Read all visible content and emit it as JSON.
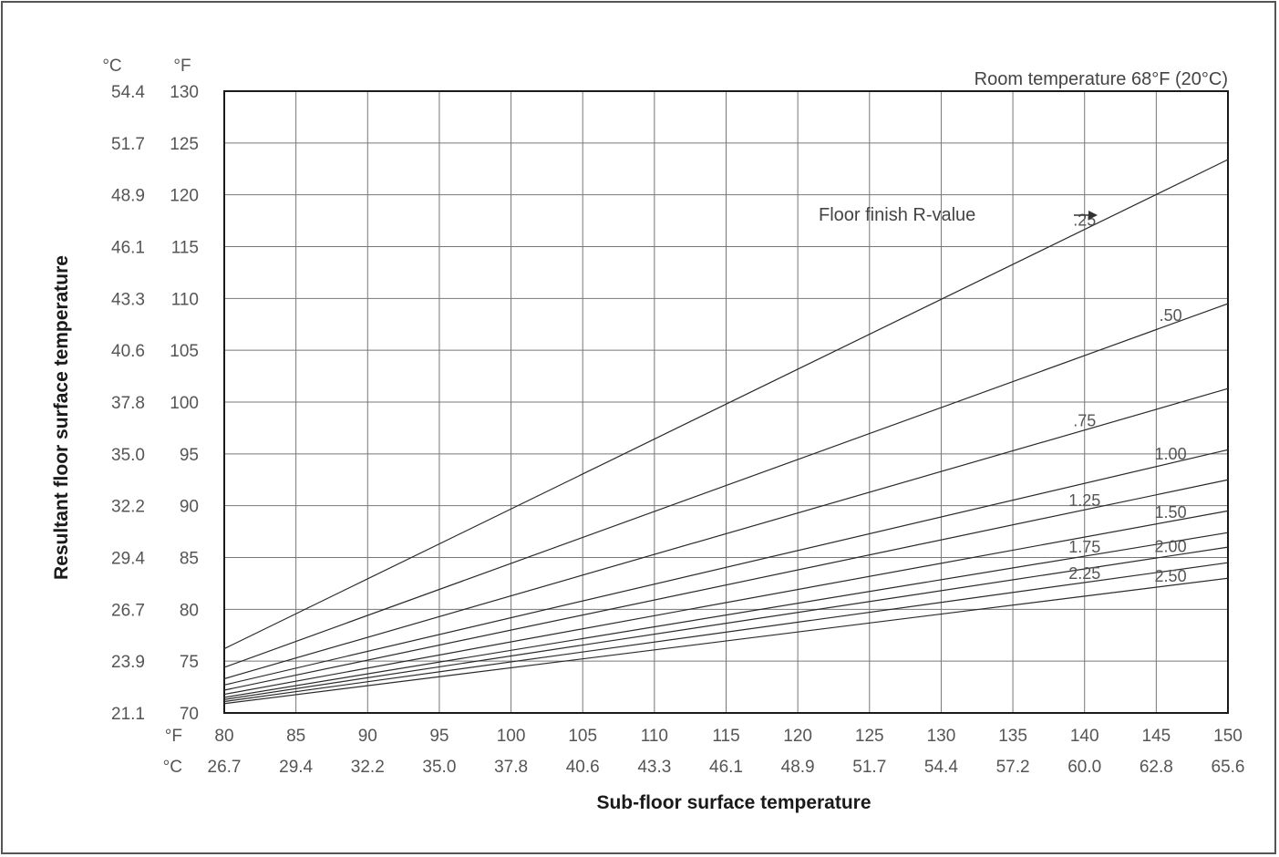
{
  "chart_data": {
    "type": "line",
    "title": "",
    "annotation": "Room temperature 68°F (20°C)",
    "legend_title": "Floor finish R-value",
    "xlabel": "Sub-floor surface temperature",
    "ylabel": "Resultant floor surface temperature",
    "x_unit_f": "°F",
    "x_unit_c": "°C",
    "y_unit_c": "°C",
    "y_unit_f": "°F",
    "xlim": [
      80,
      150
    ],
    "ylim": [
      70,
      130
    ],
    "x_ticks_f": [
      "80",
      "85",
      "90",
      "95",
      "100",
      "105",
      "110",
      "115",
      "120",
      "125",
      "130",
      "135",
      "140",
      "145",
      "150"
    ],
    "x_ticks_c": [
      "26.7",
      "29.4",
      "32.2",
      "35.0",
      "37.8",
      "40.6",
      "43.3",
      "46.1",
      "48.9",
      "51.7",
      "54.4",
      "57.2",
      "60.0",
      "62.8",
      "65.6"
    ],
    "y_ticks_f": [
      "70",
      "75",
      "80",
      "85",
      "90",
      "95",
      "100",
      "105",
      "110",
      "115",
      "120",
      "125",
      "130"
    ],
    "y_ticks_c": [
      "21.1",
      "23.9",
      "26.7",
      "29.4",
      "32.2",
      "35.0",
      "37.8",
      "40.6",
      "43.3",
      "46.1",
      "48.9",
      "51.7",
      "54.4"
    ],
    "grid": true,
    "series": [
      {
        "name": ".25",
        "x": [
          80,
          150
        ],
        "y": [
          76.2,
          123.4
        ]
      },
      {
        "name": ".50",
        "x": [
          80,
          150
        ],
        "y": [
          74.4,
          109.5
        ]
      },
      {
        "name": ".75",
        "x": [
          80,
          150
        ],
        "y": [
          73.3,
          101.3
        ]
      },
      {
        "name": "1.00",
        "x": [
          80,
          150
        ],
        "y": [
          72.7,
          95.4
        ]
      },
      {
        "name": "1.25",
        "x": [
          80,
          150
        ],
        "y": [
          72.2,
          92.5
        ]
      },
      {
        "name": "1.50",
        "x": [
          80,
          150
        ],
        "y": [
          71.8,
          89.5
        ]
      },
      {
        "name": "1.75",
        "x": [
          80,
          150
        ],
        "y": [
          71.5,
          87.4
        ]
      },
      {
        "name": "2.00",
        "x": [
          80,
          150
        ],
        "y": [
          71.3,
          86.0
        ]
      },
      {
        "name": "2.25",
        "x": [
          80,
          150
        ],
        "y": [
          71.1,
          84.5
        ]
      },
      {
        "name": "2.50",
        "x": [
          80,
          150
        ],
        "y": [
          70.9,
          83.0
        ]
      }
    ]
  }
}
